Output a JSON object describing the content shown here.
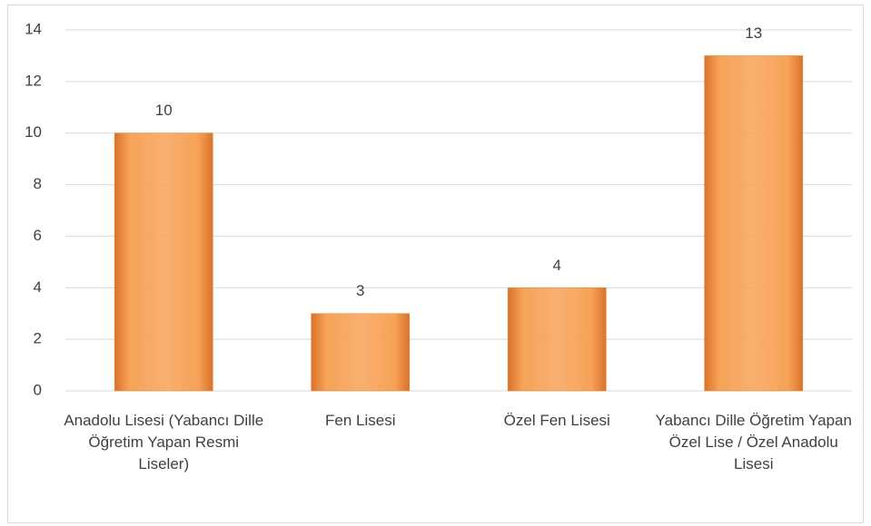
{
  "chart_data": {
    "type": "bar",
    "categories": [
      "Anadolu Lisesi (Yabancı Dille Öğretim Yapan Resmi Liseler)",
      "Fen Lisesi",
      "Özel Fen Lisesi",
      "Yabancı Dille Öğretim Yapan Özel Lise / Özel Anadolu Lisesi"
    ],
    "values": [
      10,
      3,
      4,
      13
    ],
    "color": "#f7a257",
    "ylim": [
      0,
      14
    ],
    "yticks": [
      0,
      2,
      4,
      6,
      8,
      10,
      12,
      14
    ],
    "grid": true
  }
}
